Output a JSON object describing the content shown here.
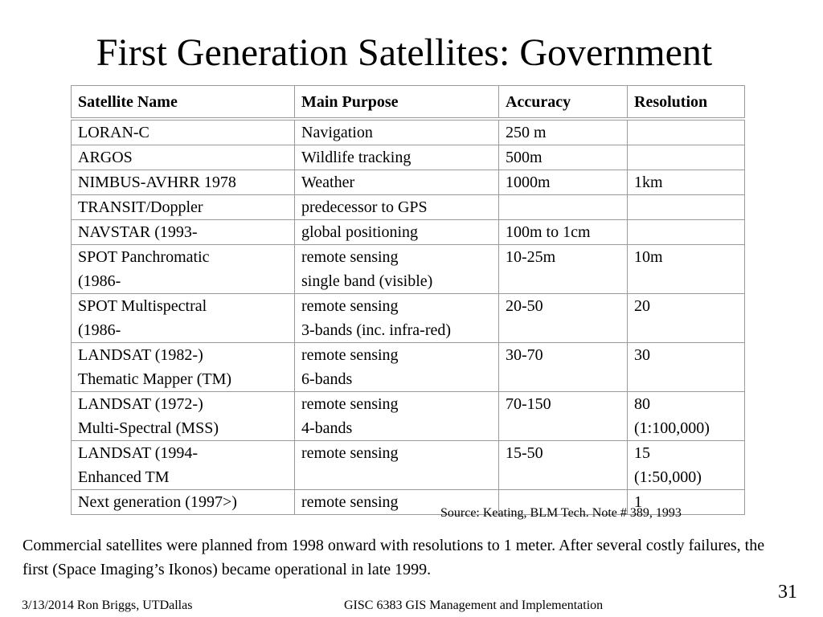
{
  "slide": {
    "title": "First Generation Satellites: Government",
    "table": {
      "headers": [
        "Satellite Name",
        "Main Purpose",
        "Accuracy",
        "Resolution"
      ],
      "rows": [
        [
          "LORAN-C",
          "Navigation",
          "250 m",
          ""
        ],
        [
          "ARGOS",
          "Wildlife tracking",
          "500m",
          ""
        ],
        [
          "NIMBUS-AVHRR 1978",
          "Weather",
          "1000m",
          "1km"
        ],
        [
          "TRANSIT/Doppler",
          "predecessor to GPS",
          "",
          ""
        ],
        [
          "NAVSTAR  (1993-",
          "global positioning",
          "100m to 1cm",
          ""
        ],
        [
          "SPOT Panchromatic\n(1986-",
          "remote sensing\nsingle band (visible)",
          "10-25m",
          "10m"
        ],
        [
          "SPOT Multispectral\n(1986-",
          "remote sensing\n3-bands (inc. infra-red)",
          "20-50",
          "20"
        ],
        [
          "LANDSAT  (1982-)\nThematic Mapper (TM)",
          "remote sensing\n6-bands",
          "30-70",
          "30"
        ],
        [
          "LANDSAT (1972-)\nMulti-Spectral (MSS)",
          "remote sensing\n4-bands",
          "70-150",
          "80\n(1:100,000)"
        ],
        [
          "LANDSAT (1994-\nEnhanced TM",
          "remote sensing",
          "15-50",
          "15\n(1:50,000)"
        ],
        [
          "Next generation (1997>)",
          "remote sensing",
          "",
          "1"
        ]
      ]
    },
    "source_note": "Source: Keating, BLM Tech. Note # 389, 1993",
    "commercial_note": "Commercial satellites were planned from 1998 onward with resolutions  to 1 meter. After several costly failures, the first (Space Imaging’s Ikonos) became operational in late 1999.",
    "footer": {
      "date_author": "3/13/2014  Ron Briggs, UTDallas",
      "course": "GISC 6383 GIS Management and Implementation",
      "page_number": "31"
    }
  }
}
